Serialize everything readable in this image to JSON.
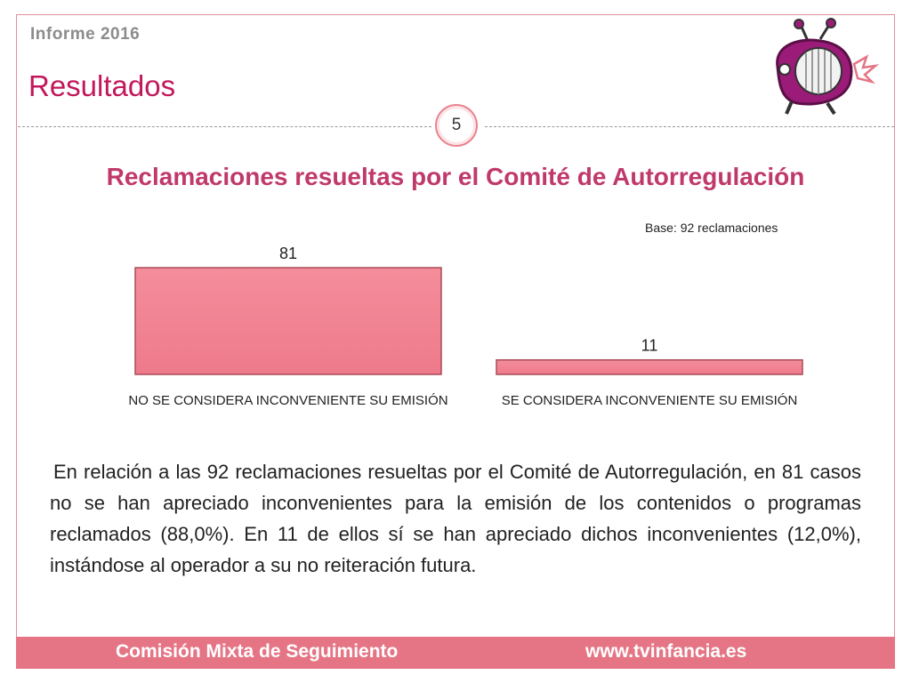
{
  "header": {
    "report_label": "Informe 2016",
    "section_title": "Resultados",
    "page_number": "5"
  },
  "chart_data": {
    "type": "bar",
    "title": "Reclamaciones resueltas por el Comité de Autorregulación",
    "subtitle": "Base: 92 reclamaciones",
    "categories": [
      "NO SE CONSIDERA INCONVENIENTE SU EMISIÓN",
      "SE CONSIDERA INCONVENIENTE SU EMISIÓN"
    ],
    "values": [
      81,
      11
    ],
    "value_labels": [
      "81",
      "11"
    ],
    "ylim": [
      0,
      81
    ],
    "grid": false,
    "bar_color": "#f08090"
  },
  "body": {
    "paragraph": "En relación a las 92 reclamaciones resueltas por el Comité de Autorregulación, en 81 casos no se han apreciado inconvenientes para la emisión de los contenidos o programas reclamados (88,0%). En 11 de ellos sí se han apreciado dichos inconvenientes (12,0%), instándose al operador a su no reiteración futura."
  },
  "footer": {
    "organization": "Comisión Mixta de Seguimiento",
    "website": "www.tvinfancia.es"
  },
  "colors": {
    "accent": "#c2185b",
    "footer_bg": "#e57585",
    "logo_purple": "#9b1c78"
  },
  "logo": {
    "icon": "tv-character-icon"
  }
}
